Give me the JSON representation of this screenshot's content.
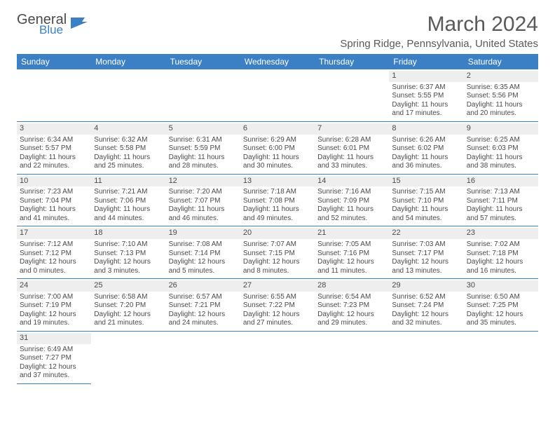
{
  "logo": {
    "word1": "General",
    "word2": "Blue"
  },
  "title": "March 2024",
  "location": "Spring Ridge, Pennsylvania, United States",
  "colors": {
    "header_bg": "#3b7fc4",
    "header_text": "#ffffff",
    "daynum_bg": "#eeeeee",
    "rule": "#3b7fc4",
    "text": "#4a4a4a",
    "page_bg": "#ffffff"
  },
  "dayNames": [
    "Sunday",
    "Monday",
    "Tuesday",
    "Wednesday",
    "Thursday",
    "Friday",
    "Saturday"
  ],
  "startBlank": 5,
  "days": [
    {
      "n": 1,
      "sr": "6:37 AM",
      "ss": "5:55 PM",
      "dl": "11 hours and 17 minutes."
    },
    {
      "n": 2,
      "sr": "6:35 AM",
      "ss": "5:56 PM",
      "dl": "11 hours and 20 minutes."
    },
    {
      "n": 3,
      "sr": "6:34 AM",
      "ss": "5:57 PM",
      "dl": "11 hours and 22 minutes."
    },
    {
      "n": 4,
      "sr": "6:32 AM",
      "ss": "5:58 PM",
      "dl": "11 hours and 25 minutes."
    },
    {
      "n": 5,
      "sr": "6:31 AM",
      "ss": "5:59 PM",
      "dl": "11 hours and 28 minutes."
    },
    {
      "n": 6,
      "sr": "6:29 AM",
      "ss": "6:00 PM",
      "dl": "11 hours and 30 minutes."
    },
    {
      "n": 7,
      "sr": "6:28 AM",
      "ss": "6:01 PM",
      "dl": "11 hours and 33 minutes."
    },
    {
      "n": 8,
      "sr": "6:26 AM",
      "ss": "6:02 PM",
      "dl": "11 hours and 36 minutes."
    },
    {
      "n": 9,
      "sr": "6:25 AM",
      "ss": "6:03 PM",
      "dl": "11 hours and 38 minutes."
    },
    {
      "n": 10,
      "sr": "7:23 AM",
      "ss": "7:04 PM",
      "dl": "11 hours and 41 minutes."
    },
    {
      "n": 11,
      "sr": "7:21 AM",
      "ss": "7:06 PM",
      "dl": "11 hours and 44 minutes."
    },
    {
      "n": 12,
      "sr": "7:20 AM",
      "ss": "7:07 PM",
      "dl": "11 hours and 46 minutes."
    },
    {
      "n": 13,
      "sr": "7:18 AM",
      "ss": "7:08 PM",
      "dl": "11 hours and 49 minutes."
    },
    {
      "n": 14,
      "sr": "7:16 AM",
      "ss": "7:09 PM",
      "dl": "11 hours and 52 minutes."
    },
    {
      "n": 15,
      "sr": "7:15 AM",
      "ss": "7:10 PM",
      "dl": "11 hours and 54 minutes."
    },
    {
      "n": 16,
      "sr": "7:13 AM",
      "ss": "7:11 PM",
      "dl": "11 hours and 57 minutes."
    },
    {
      "n": 17,
      "sr": "7:12 AM",
      "ss": "7:12 PM",
      "dl": "12 hours and 0 minutes."
    },
    {
      "n": 18,
      "sr": "7:10 AM",
      "ss": "7:13 PM",
      "dl": "12 hours and 3 minutes."
    },
    {
      "n": 19,
      "sr": "7:08 AM",
      "ss": "7:14 PM",
      "dl": "12 hours and 5 minutes."
    },
    {
      "n": 20,
      "sr": "7:07 AM",
      "ss": "7:15 PM",
      "dl": "12 hours and 8 minutes."
    },
    {
      "n": 21,
      "sr": "7:05 AM",
      "ss": "7:16 PM",
      "dl": "12 hours and 11 minutes."
    },
    {
      "n": 22,
      "sr": "7:03 AM",
      "ss": "7:17 PM",
      "dl": "12 hours and 13 minutes."
    },
    {
      "n": 23,
      "sr": "7:02 AM",
      "ss": "7:18 PM",
      "dl": "12 hours and 16 minutes."
    },
    {
      "n": 24,
      "sr": "7:00 AM",
      "ss": "7:19 PM",
      "dl": "12 hours and 19 minutes."
    },
    {
      "n": 25,
      "sr": "6:58 AM",
      "ss": "7:20 PM",
      "dl": "12 hours and 21 minutes."
    },
    {
      "n": 26,
      "sr": "6:57 AM",
      "ss": "7:21 PM",
      "dl": "12 hours and 24 minutes."
    },
    {
      "n": 27,
      "sr": "6:55 AM",
      "ss": "7:22 PM",
      "dl": "12 hours and 27 minutes."
    },
    {
      "n": 28,
      "sr": "6:54 AM",
      "ss": "7:23 PM",
      "dl": "12 hours and 29 minutes."
    },
    {
      "n": 29,
      "sr": "6:52 AM",
      "ss": "7:24 PM",
      "dl": "12 hours and 32 minutes."
    },
    {
      "n": 30,
      "sr": "6:50 AM",
      "ss": "7:25 PM",
      "dl": "12 hours and 35 minutes."
    },
    {
      "n": 31,
      "sr": "6:49 AM",
      "ss": "7:27 PM",
      "dl": "12 hours and 37 minutes."
    }
  ],
  "labels": {
    "sunrise": "Sunrise:",
    "sunset": "Sunset:",
    "daylight": "Daylight:"
  }
}
